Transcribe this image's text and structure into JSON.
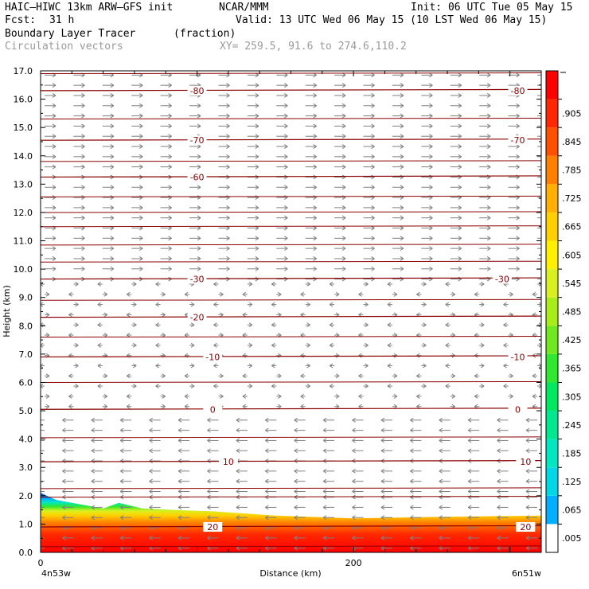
{
  "header": {
    "model": "HAIC—HIWC 13km ARW—GFS init",
    "org": "NCAR/MMM",
    "init": "Init: 06 UTC Tue 05 May 15",
    "fcst_label": "Fcst:",
    "fcst_value": "31 h",
    "valid": "Valid: 13 UTC Wed 06 May 15 (10 LST Wed 06 May 15)",
    "field": "Boundary Layer Tracer",
    "field_units": "(fraction)",
    "overlay": "Circulation vectors",
    "xy": "XY= 259.5, 91.6 to 274.6,110.2"
  },
  "chart_data": {
    "type": "heatmap",
    "ylabel": "Height (km)",
    "xlabel": "Distance (km)",
    "ylim": [
      0,
      17
    ],
    "y_ticks": [
      "0.0",
      "1.0",
      "2.0",
      "3.0",
      "4.0",
      "5.0",
      "6.0",
      "7.0",
      "8.0",
      "9.0",
      "10.0",
      "11.0",
      "12.0",
      "13.0",
      "14.0",
      "15.0",
      "16.0",
      "17.0"
    ],
    "xlim": [
      0,
      320
    ],
    "x_ticks": [
      {
        "value": 0,
        "label": "0"
      },
      {
        "value": 200,
        "label": "200"
      }
    ],
    "x_end_labels": {
      "left": "4n53w",
      "right": "6n51w"
    },
    "colorbar": {
      "labels": [
        ".005",
        ".065",
        ".125",
        ".185",
        ".245",
        ".305",
        ".365",
        ".425",
        ".485",
        ".545",
        ".605",
        ".665",
        ".725",
        ".785",
        ".845",
        ".905"
      ],
      "colors": [
        "#ffffff",
        "#00b0ff",
        "#00d8e8",
        "#00e8c0",
        "#00e890",
        "#00e860",
        "#30e830",
        "#70e820",
        "#a8ec18",
        "#d8f020",
        "#fff000",
        "#ffd000",
        "#ffb000",
        "#ff8000",
        "#ff5000",
        "#ff2800",
        "#ff0000"
      ]
    },
    "tracer_top_km": [
      {
        "x": 0,
        "top": 2.1
      },
      {
        "x": 10,
        "top": 1.85
      },
      {
        "x": 25,
        "top": 1.7
      },
      {
        "x": 40,
        "top": 1.55
      },
      {
        "x": 50,
        "top": 1.75
      },
      {
        "x": 65,
        "top": 1.55
      },
      {
        "x": 85,
        "top": 1.5
      },
      {
        "x": 110,
        "top": 1.45
      },
      {
        "x": 150,
        "top": 1.3
      },
      {
        "x": 200,
        "top": 1.2
      },
      {
        "x": 250,
        "top": 1.25
      },
      {
        "x": 320,
        "top": 1.3
      }
    ],
    "temperature_contours": [
      {
        "label": "20",
        "km": 0.9,
        "label_x": [
          110,
          310
        ]
      },
      {
        "label": "10",
        "km": 3.2,
        "label_x": [
          120,
          310
        ]
      },
      {
        "label": "0",
        "km": 5.05,
        "label_x": [
          110,
          305
        ]
      },
      {
        "label": "-10",
        "km": 6.9,
        "label_x": [
          110,
          305
        ]
      },
      {
        "label": "-20",
        "km": 8.3,
        "label_x": [
          100,
          null
        ]
      },
      {
        "label": "-30",
        "km": 9.65,
        "label_x": [
          100,
          295
        ]
      },
      {
        "label": "-60",
        "km": 13.25,
        "label_x": [
          100,
          null
        ]
      },
      {
        "label": "-70",
        "km": 14.55,
        "label_x": [
          100,
          305
        ]
      },
      {
        "label": "-80",
        "km": 16.3,
        "label_x": [
          100,
          305
        ]
      }
    ],
    "extra_isotherm_km": [
      0.2,
      1.95,
      2.25,
      4.05,
      6.0,
      7.6,
      8.9,
      10.25,
      10.85,
      11.5,
      12.0,
      12.55,
      13.8,
      15.3,
      16.9
    ],
    "vectors": [
      {
        "from_km": 0,
        "to_km": 2.0,
        "direction": "west"
      },
      {
        "from_km": 2.0,
        "to_km": 5.0,
        "direction": "west"
      },
      {
        "from_km": 5.0,
        "to_km": 9.5,
        "direction": "mixed"
      },
      {
        "from_km": 9.5,
        "to_km": 17.0,
        "direction": "east"
      }
    ]
  }
}
